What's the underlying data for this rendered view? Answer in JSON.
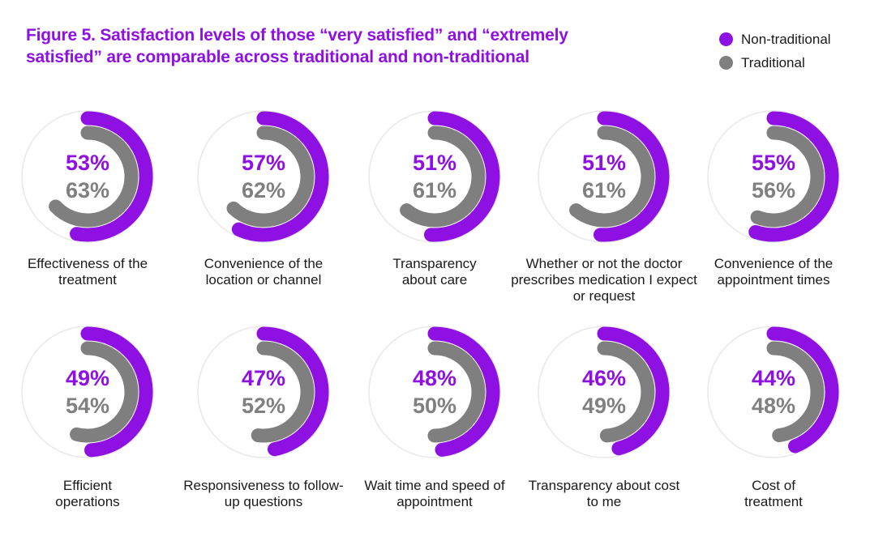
{
  "title": "Figure 5. Satisfaction levels of those “very satisfied” and “extremely satisfied” are comparable across traditional and non-traditional",
  "legend": [
    {
      "label": "Non-traditional",
      "color": "#8f10e3"
    },
    {
      "label": "Traditional",
      "color": "#7f7f7f"
    }
  ],
  "chart_data": {
    "type": "radial-bar",
    "title": "Figure 5. Satisfaction levels of those “very satisfied” and “extremely satisfied” are comparable across traditional and non-traditional",
    "series": [
      {
        "name": "Non-traditional",
        "color": "#8f10e3"
      },
      {
        "name": "Traditional",
        "color": "#7f7f7f"
      }
    ],
    "items": [
      {
        "category": "Effectiveness of the treatment",
        "non_traditional": 53,
        "traditional": 63,
        "non_traditional_label": "53%",
        "traditional_label": "63%"
      },
      {
        "category": "Convenience of the location or channel",
        "non_traditional": 57,
        "traditional": 62,
        "non_traditional_label": "57%",
        "traditional_label": "62%"
      },
      {
        "category": "Transparency about care",
        "non_traditional": 51,
        "traditional": 61,
        "non_traditional_label": "51%",
        "traditional_label": "61%"
      },
      {
        "category": "Whether or not the doctor prescribes medication I expect or request",
        "non_traditional": 51,
        "traditional": 61,
        "non_traditional_label": "51%",
        "traditional_label": "61%"
      },
      {
        "category": "Convenience of the appointment times",
        "non_traditional": 55,
        "traditional": 56,
        "non_traditional_label": "55%",
        "traditional_label": "56%"
      },
      {
        "category": "Efficient operations",
        "non_traditional": 49,
        "traditional": 54,
        "non_traditional_label": "49%",
        "traditional_label": "54%"
      },
      {
        "category": "Responsiveness to follow-up questions",
        "non_traditional": 47,
        "traditional": 52,
        "non_traditional_label": "47%",
        "traditional_label": "52%"
      },
      {
        "category": "Wait time and speed of appointment",
        "non_traditional": 48,
        "traditional": 50,
        "non_traditional_label": "48%",
        "traditional_label": "50%"
      },
      {
        "category": "Transparency about cost to me",
        "non_traditional": 46,
        "traditional": 49,
        "non_traditional_label": "46%",
        "traditional_label": "49%"
      },
      {
        "category": "Cost of treatment",
        "non_traditional": 44,
        "traditional": 48,
        "non_traditional_label": "44%",
        "traditional_label": "48%"
      }
    ]
  }
}
